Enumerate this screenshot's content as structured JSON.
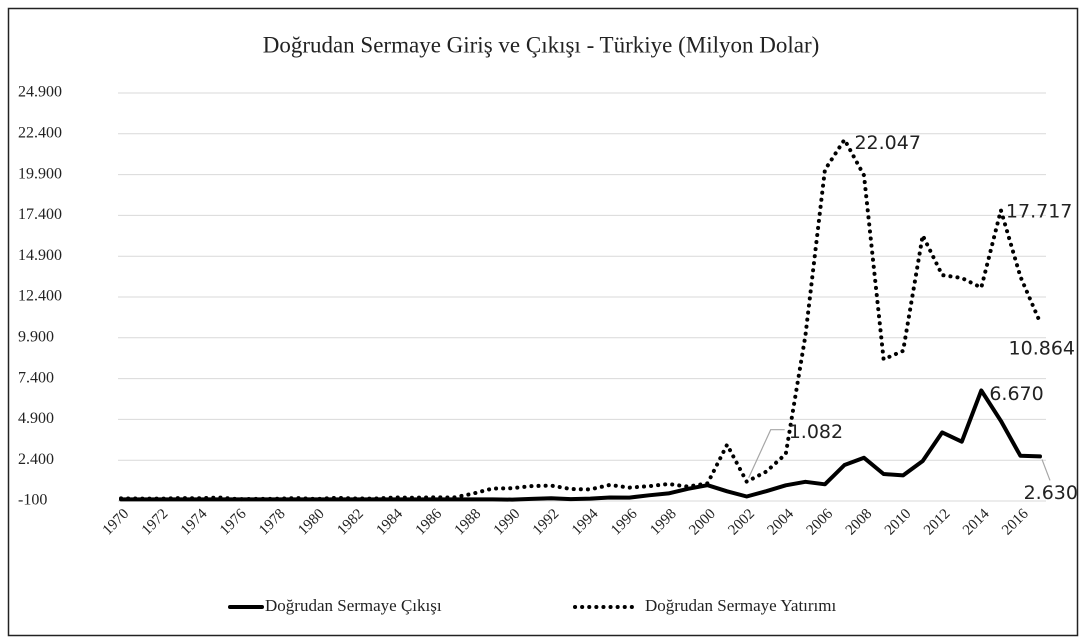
{
  "chart_data": {
    "type": "line",
    "title": "Doğrudan Sermaye Giriş ve Çıkışı - Türkiye (Milyon Dolar)",
    "categories": [
      "1970",
      null,
      "1972",
      null,
      "1974",
      null,
      "1976",
      null,
      "1978",
      null,
      "1980",
      null,
      "1982",
      null,
      "1984",
      null,
      "1986",
      null,
      "1988",
      null,
      "1990",
      null,
      "1992",
      null,
      "1994",
      null,
      "1996",
      null,
      "1998",
      null,
      "2000",
      null,
      "2002",
      null,
      "2004",
      null,
      "2006",
      null,
      "2008",
      null,
      "2010",
      null,
      "2012",
      null,
      "2014",
      null,
      "2016",
      null
    ],
    "series": [
      {
        "name": "Doğrudan Sermaye Çıkışı",
        "color": "#000000",
        "style": "solid",
        "values": [
          0,
          0,
          0,
          0,
          0,
          0,
          0,
          0,
          0,
          0,
          0,
          0,
          0,
          0,
          0,
          0,
          0,
          0,
          0,
          0,
          -16,
          27,
          65,
          14,
          49,
          113,
          110,
          251,
          367,
          645,
          870,
          497,
          175,
          499,
          859,
          1078,
          924,
          2106,
          2549,
          1553,
          1469,
          2349,
          4106,
          3535,
          6670,
          4811,
          2672,
          2630
        ],
        "value_labels": [
          null,
          null,
          null,
          null,
          null,
          null,
          null,
          null,
          null,
          null,
          null,
          null,
          null,
          null,
          null,
          null,
          null,
          null,
          null,
          null,
          null,
          null,
          null,
          null,
          null,
          null,
          null,
          null,
          null,
          null,
          null,
          null,
          null,
          null,
          null,
          null,
          null,
          null,
          null,
          null,
          null,
          null,
          null,
          null,
          "6.670",
          null,
          null,
          "2.630"
        ]
      },
      {
        "name": "Doğrudan Sermaye Yatırımı",
        "color": "#000000",
        "style": "dotted",
        "values": [
          58,
          45,
          43,
          79,
          64,
          114,
          10,
          27,
          34,
          75,
          18,
          95,
          55,
          46,
          113,
          99,
          125,
          106,
          354,
          663,
          684,
          810,
          844,
          636,
          608,
          885,
          722,
          805,
          940,
          783,
          982,
          3352,
          1082,
          1702,
          2785,
          10031,
          20185,
          22047,
          19851,
          8585,
          9099,
          16176,
          13744,
          13563,
          12974,
          17717,
          13651,
          10864
        ],
        "value_labels": [
          null,
          null,
          null,
          null,
          null,
          null,
          null,
          null,
          null,
          null,
          null,
          null,
          null,
          null,
          null,
          null,
          null,
          null,
          null,
          null,
          null,
          null,
          null,
          null,
          null,
          null,
          null,
          null,
          null,
          null,
          null,
          null,
          "1.082",
          null,
          null,
          null,
          null,
          "22.047",
          null,
          null,
          null,
          null,
          null,
          null,
          null,
          "17.717",
          null,
          "10.864"
        ]
      }
    ],
    "ylim": [
      -100,
      24900
    ],
    "yticks": [
      -100,
      {
        "value": 2400,
        "label": "2.400"
      },
      {
        "value": 4900,
        "label": "4.900"
      },
      {
        "value": 7400,
        "label": "7.400"
      },
      {
        "value": 9900,
        "label": "9.900"
      },
      {
        "value": 12400,
        "label": "12.400"
      },
      {
        "value": 14900,
        "label": "14.900"
      },
      {
        "value": 17400,
        "label": "17.400"
      },
      {
        "value": 19900,
        "label": "19.900"
      },
      {
        "value": 22400,
        "label": "22.400"
      },
      {
        "value": 24900,
        "label": "24.900"
      }
    ],
    "grid": true,
    "legend": "bottom"
  }
}
